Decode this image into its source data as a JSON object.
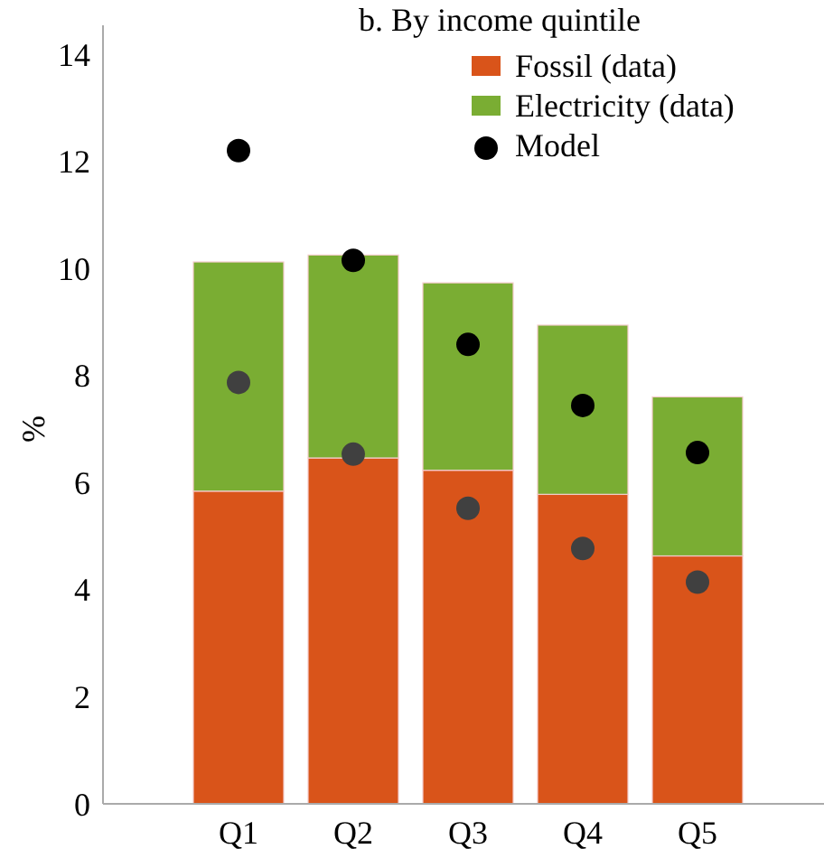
{
  "chart_data": {
    "type": "bar",
    "title": "b. By income quintile",
    "ylabel": "%",
    "categories": [
      "Q1",
      "Q2",
      "Q3",
      "Q4",
      "Q5"
    ],
    "stacked": true,
    "series": [
      {
        "name": "Fossil (data)",
        "color": "#d9541a",
        "values": [
          5.84,
          6.46,
          6.23,
          5.78,
          4.63
        ]
      },
      {
        "name": "Electricity (data)",
        "color": "#7aad33",
        "values": [
          4.28,
          3.79,
          3.5,
          3.16,
          2.97
        ]
      },
      {
        "name": "Model",
        "type": "scatter",
        "color": "#000000",
        "x": [
          "Q1",
          "Q2",
          "Q3",
          "Q4",
          "Q5"
        ],
        "values": [
          12.2,
          10.15,
          8.58,
          7.44,
          6.56
        ]
      },
      {
        "type": "scatter",
        "color": "#404040",
        "x": [
          "Q1",
          "Q2",
          "Q3",
          "Q4",
          "Q5"
        ],
        "values": [
          7.87,
          6.53,
          5.52,
          4.77,
          4.14
        ]
      }
    ],
    "ylim": [
      0,
      14
    ],
    "yticks": [
      0,
      2,
      4,
      6,
      8,
      10,
      12,
      14
    ],
    "legend": "top right",
    "marker": "circle"
  }
}
